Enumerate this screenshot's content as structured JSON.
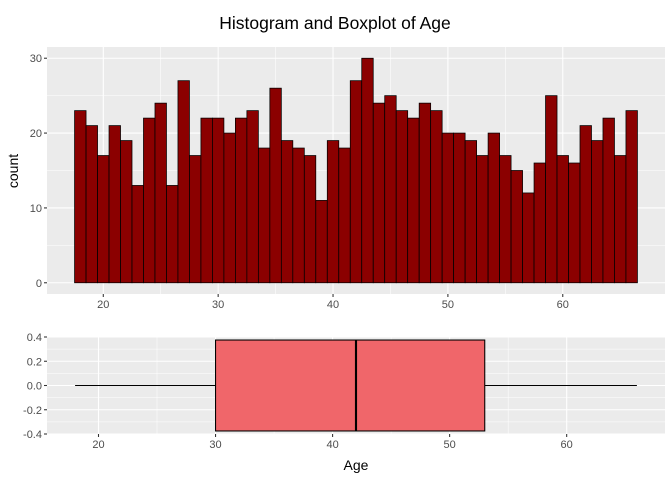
{
  "title": "Histogram and Boxplot of Age",
  "chart_data": [
    {
      "type": "bar",
      "subtype": "histogram",
      "xlabel": "",
      "ylabel": "count",
      "bin_width": 1,
      "bin_centers": [
        18,
        19,
        20,
        21,
        22,
        23,
        24,
        25,
        26,
        27,
        28,
        29,
        30,
        31,
        32,
        33,
        34,
        35,
        36,
        37,
        38,
        39,
        40,
        41,
        42,
        43,
        44,
        45,
        46,
        47,
        48,
        49,
        50,
        51,
        52,
        53,
        54,
        55,
        56,
        57,
        58,
        59,
        60,
        61,
        62,
        63,
        64,
        65,
        66
      ],
      "values": [
        23,
        21,
        17,
        21,
        19,
        13,
        22,
        24,
        13,
        27,
        17,
        22,
        22,
        20,
        22,
        23,
        18,
        26,
        19,
        18,
        17,
        11,
        19,
        18,
        27,
        30,
        24,
        25,
        23,
        22,
        24,
        23,
        20,
        20,
        19,
        17,
        20,
        17,
        15,
        12,
        16,
        25,
        17,
        16,
        21,
        19,
        22,
        17,
        23
      ],
      "xlim": [
        15.1,
        68.9
      ],
      "ylim": [
        -1.5,
        31.5
      ],
      "x_ticks": [
        20,
        30,
        40,
        50,
        60
      ],
      "y_ticks": [
        0,
        10,
        20,
        30
      ],
      "grid": true,
      "colors": {
        "fill": "#8b0000",
        "stroke": "#000000",
        "panel": "#ebebeb"
      }
    },
    {
      "type": "boxplot",
      "orientation": "horizontal",
      "xlabel": "Age",
      "ylabel": "",
      "min": 18,
      "q1": 30,
      "median": 42,
      "q3": 53,
      "max": 66,
      "box_y_range": [
        -0.375,
        0.375
      ],
      "xlim": [
        15.6,
        68.4
      ],
      "ylim": [
        -0.4,
        0.4
      ],
      "x_ticks": [
        20,
        30,
        40,
        50,
        60
      ],
      "y_ticks": [
        0.4,
        0.2,
        0.0,
        -0.2,
        -0.4
      ],
      "y_tick_labels": [
        "0.4",
        "0.2",
        "0.0",
        "-0.2",
        "-0.4"
      ],
      "grid": true,
      "colors": {
        "fill": "#f0666a",
        "stroke": "#000000",
        "panel": "#ebebeb"
      }
    }
  ]
}
